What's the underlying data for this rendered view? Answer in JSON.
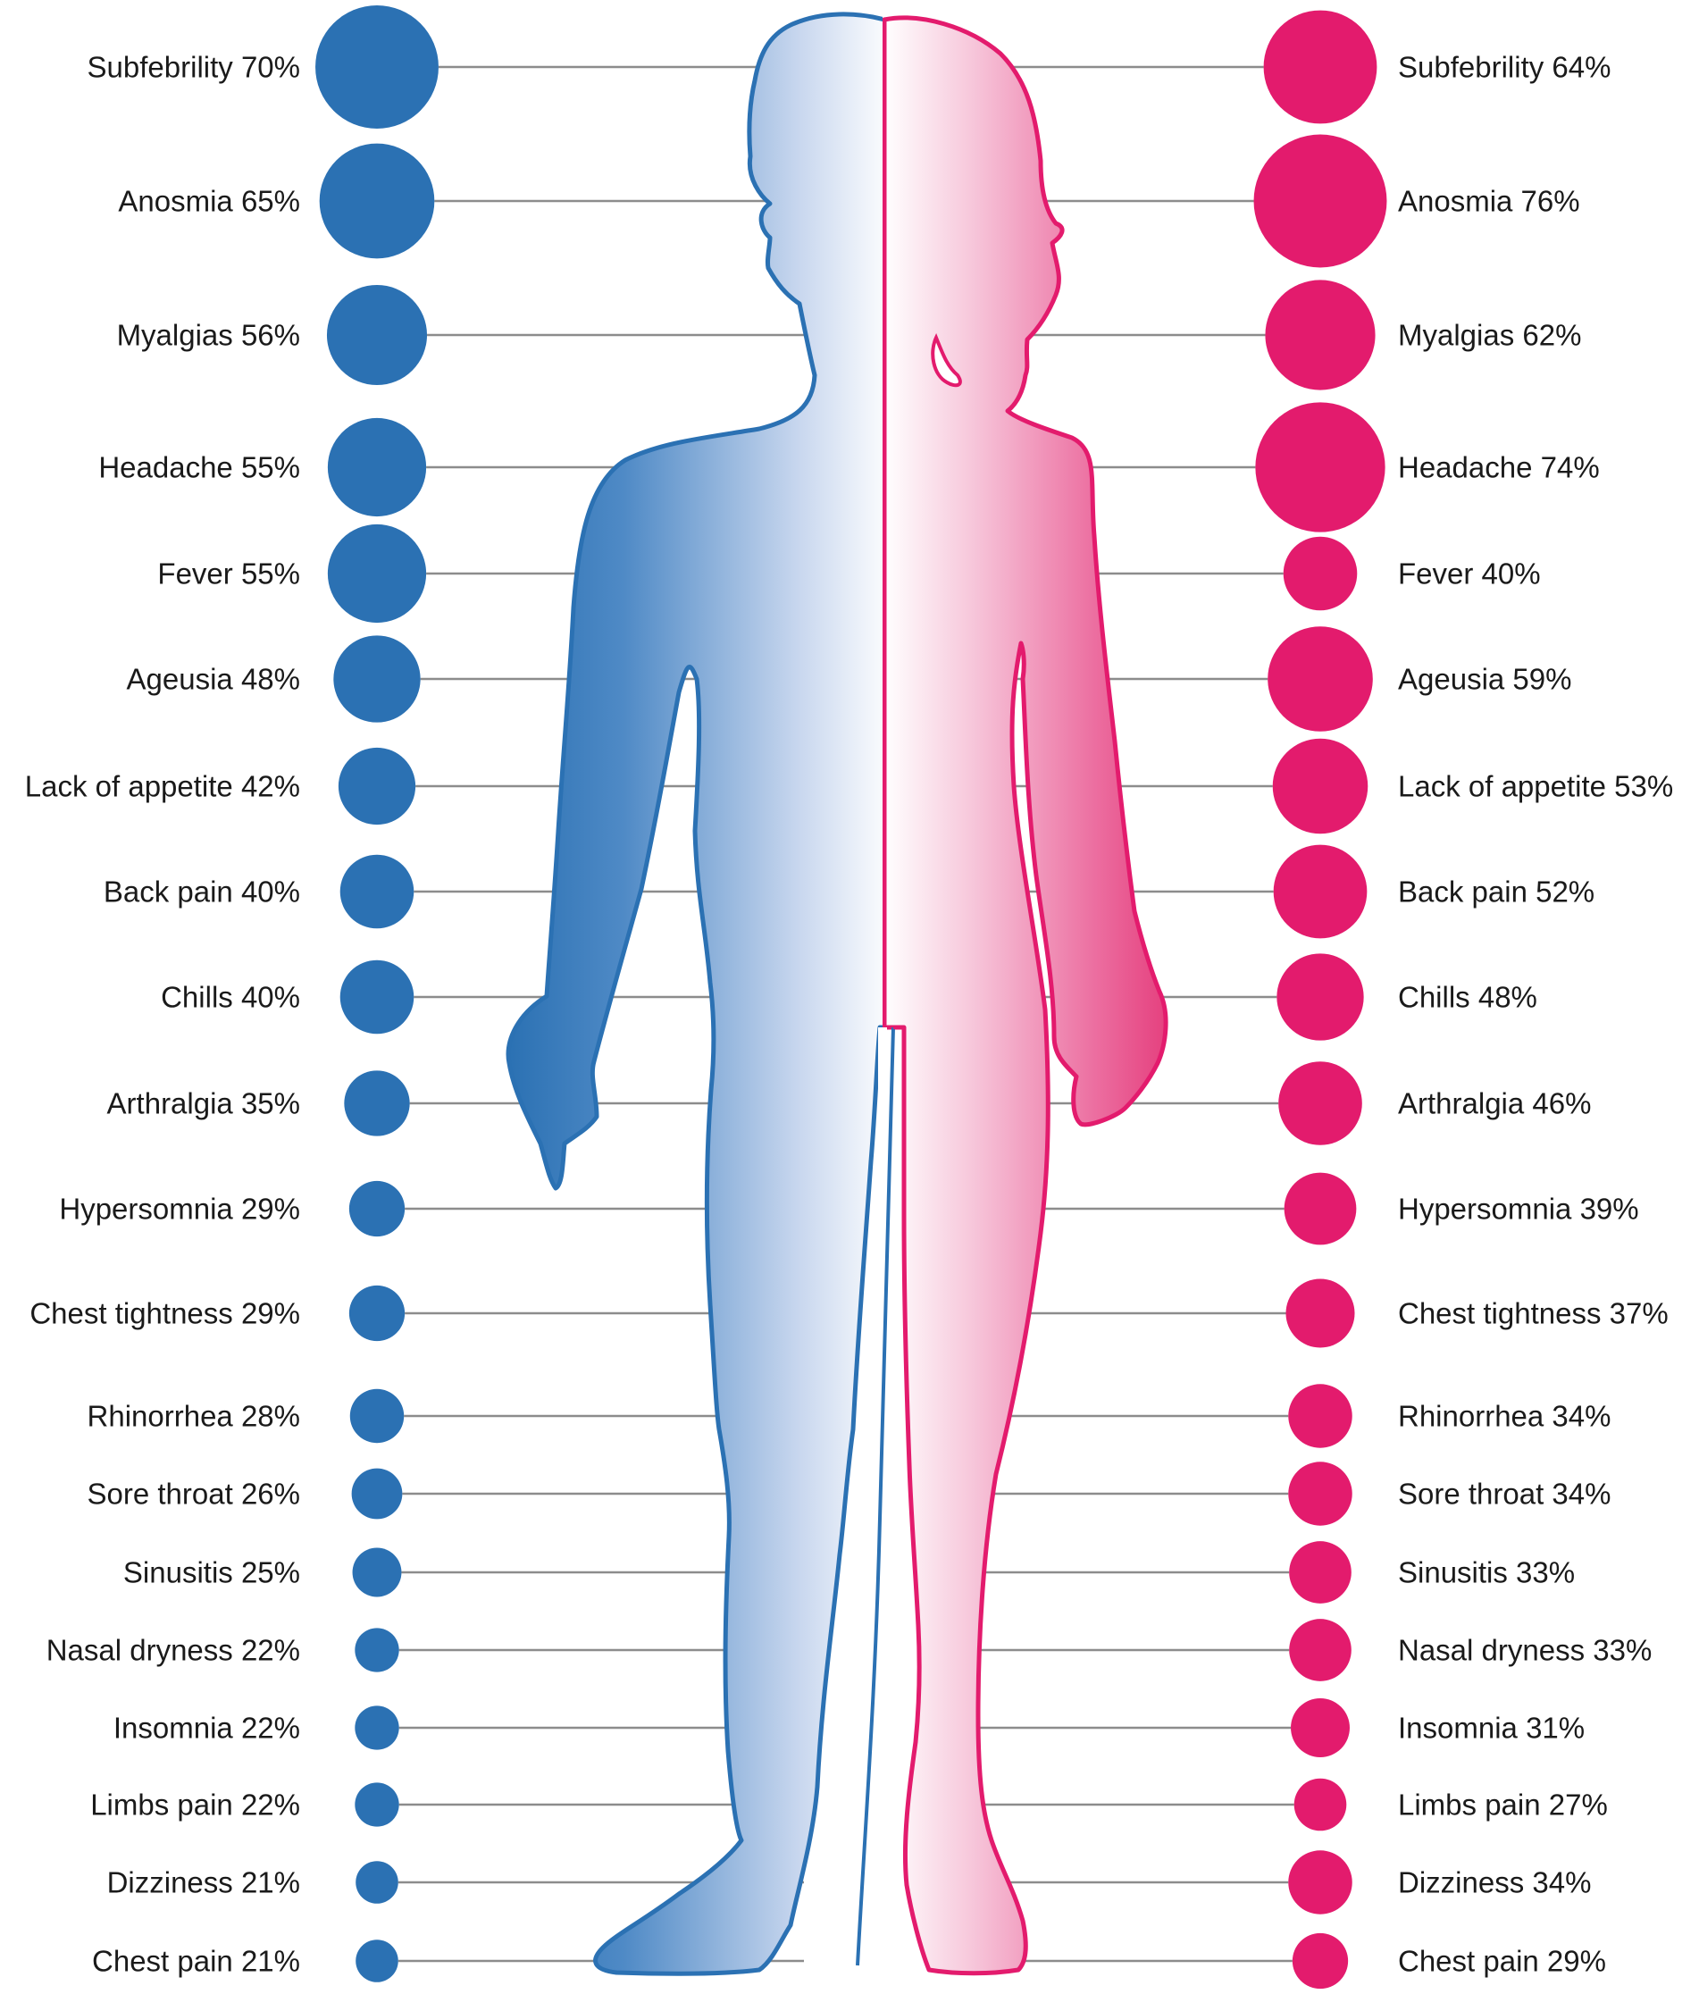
{
  "colors": {
    "left": "#2b71b3",
    "right": "#e31b6d",
    "line": "#8c8c8c"
  },
  "chart_data": {
    "type": "bubble",
    "categories": [
      "Subfebrility",
      "Anosmia",
      "Myalgias",
      "Headache",
      "Fever",
      "Ageusia",
      "Lack of appetite",
      "Back pain",
      "Chills",
      "Arthralgia",
      "Hypersomnia",
      "Chest tightness",
      "Rhinorrhea",
      "Sore throat",
      "Sinusitis",
      "Nasal dryness",
      "Insomnia",
      "Limbs pain",
      "Dizziness",
      "Chest pain"
    ],
    "series": [
      {
        "color": "#2b71b3",
        "values": [
          70,
          65,
          56,
          55,
          55,
          48,
          42,
          40,
          40,
          35,
          29,
          29,
          28,
          26,
          25,
          22,
          22,
          22,
          21,
          21
        ],
        "labels": [
          "Subfebrility 70%",
          "Anosmia 65%",
          "Myalgias 56%",
          "Headache 55%",
          "Fever 55%",
          "Ageusia 48%",
          "Lack of appetite 42%",
          "Back pain 40%",
          "Chills 40%",
          "Arthralgia 35%",
          "Hypersomnia 29%",
          "Chest tightness 29%",
          "Rhinorrhea 28%",
          "Sore throat 26%",
          "Sinusitis 25%",
          "Nasal dryness 22%",
          "Insomnia 22%",
          "Limbs pain 22%",
          "Dizziness 21%",
          "Chest pain 21%"
        ]
      },
      {
        "color": "#e31b6d",
        "values": [
          64,
          76,
          62,
          74,
          40,
          59,
          53,
          52,
          48,
          46,
          39,
          37,
          34,
          34,
          33,
          33,
          31,
          27,
          34,
          29
        ],
        "labels": [
          "Subfebrility 64%",
          "Anosmia 76%",
          "Myalgias 62%",
          "Headache 74%",
          "Fever 40%",
          "Ageusia 59%",
          "Lack of appetite 53%",
          "Back pain 52%",
          "Chills 48%",
          "Arthralgia 46%",
          "Hypersomnia 39%",
          "Chest tightness 37%",
          "Rhinorrhea 34%",
          "Sore throat 34%",
          "Sinusitis 33%",
          "Nasal dryness 33%",
          "Insomnia 31%",
          "Limbs pain 27%",
          "Dizziness 34%",
          "Chest pain 29%"
        ]
      }
    ],
    "unit": "%"
  }
}
